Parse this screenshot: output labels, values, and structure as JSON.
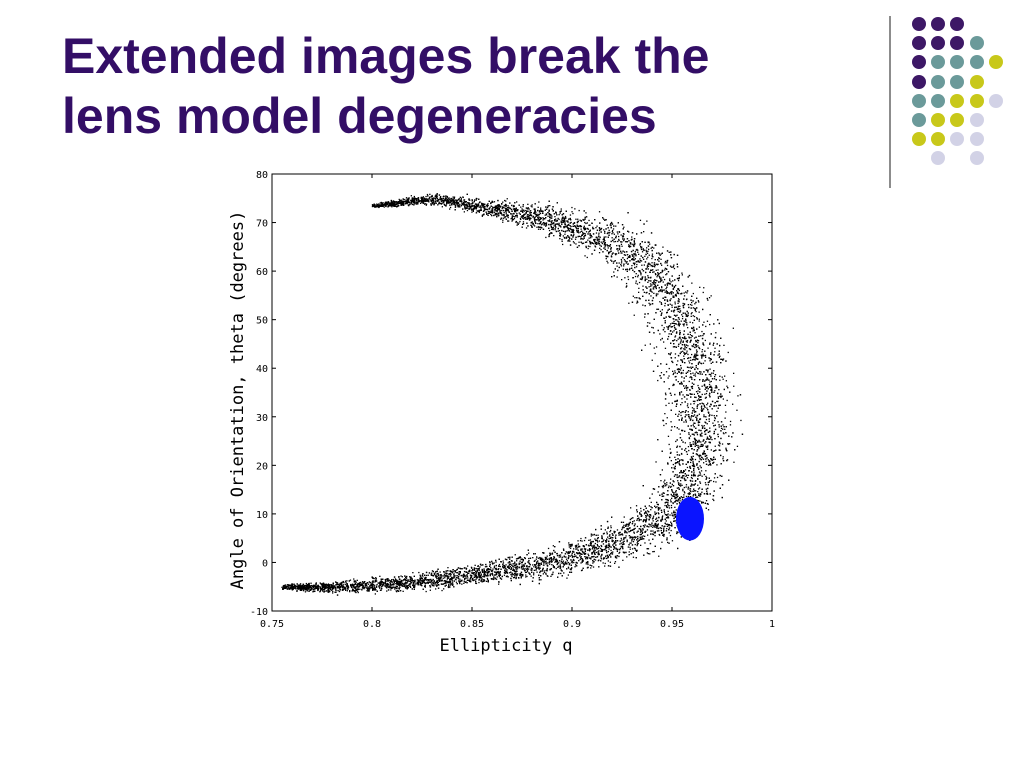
{
  "slide": {
    "title_line1": "Extended images break the",
    "title_line2": "lens model degeneracies",
    "title_color": "#330e66"
  },
  "decoration": {
    "dot_colors": {
      "purple": "#3d1866",
      "teal": "#6b9a9a",
      "olive": "#c8c81a",
      "lavender": "#d2d2e6"
    },
    "dot_grid": [
      [
        "purple",
        "purple",
        "purple",
        "",
        "",
        ""
      ],
      [
        "purple",
        "purple",
        "purple",
        "teal",
        "",
        ""
      ],
      [
        "purple",
        "teal",
        "teal",
        "teal",
        "olive",
        ""
      ],
      [
        "purple",
        "teal",
        "teal",
        "olive",
        "",
        ""
      ],
      [
        "teal",
        "teal",
        "olive",
        "olive",
        "lavender",
        ""
      ],
      [
        "teal",
        "olive",
        "olive",
        "lavender",
        "",
        ""
      ],
      [
        "olive",
        "olive",
        "lavender",
        "lavender",
        "",
        ""
      ],
      [
        "",
        "lavender",
        "",
        "lavender",
        "",
        ""
      ]
    ]
  },
  "chart_data": {
    "type": "scatter",
    "title": "",
    "xlabel": "Ellipticity q",
    "ylabel": "Angle of Orientation, theta (degrees)",
    "xlim": [
      0.75,
      1
    ],
    "ylim": [
      -10,
      80
    ],
    "xticks": [
      0.75,
      0.8,
      0.85,
      0.9,
      0.95,
      1
    ],
    "xtick_labels": [
      "0.75",
      "0.8",
      "0.85",
      "0.9",
      "0.95",
      "1"
    ],
    "yticks": [
      -10,
      0,
      10,
      20,
      30,
      40,
      50,
      60,
      70,
      80
    ],
    "ytick_labels": [
      "-10",
      "0",
      "10",
      "20",
      "30",
      "40",
      "50",
      "60",
      "70",
      "80"
    ],
    "grid": false,
    "point_color": "#000000",
    "series": [
      {
        "description_free": true,
        "marker": "dot",
        "distribution": "crescent",
        "spine": [
          {
            "q": 0.755,
            "theta": -5,
            "width": 0.5
          },
          {
            "q": 0.78,
            "theta": -5,
            "width": 1.2
          },
          {
            "q": 0.82,
            "theta": -4,
            "width": 1.8
          },
          {
            "q": 0.86,
            "theta": -2,
            "width": 2.5
          },
          {
            "q": 0.9,
            "theta": 1,
            "width": 3.5
          },
          {
            "q": 0.93,
            "theta": 5,
            "width": 4.5
          },
          {
            "q": 0.955,
            "theta": 12,
            "width": 6
          },
          {
            "q": 0.963,
            "theta": 20,
            "width": 7
          },
          {
            "q": 0.964,
            "theta": 30,
            "width": 7.5
          },
          {
            "q": 0.962,
            "theta": 40,
            "width": 7.5
          },
          {
            "q": 0.955,
            "theta": 50,
            "width": 7
          },
          {
            "q": 0.945,
            "theta": 58,
            "width": 6.5
          },
          {
            "q": 0.93,
            "theta": 64,
            "width": 5.5
          },
          {
            "q": 0.91,
            "theta": 68,
            "width": 4.5
          },
          {
            "q": 0.885,
            "theta": 71,
            "width": 3
          },
          {
            "q": 0.86,
            "theta": 73,
            "width": 1.8
          },
          {
            "q": 0.83,
            "theta": 75,
            "width": 1.2
          },
          {
            "q": 0.8,
            "theta": 73.5,
            "width": 0.4
          }
        ],
        "point_count": 9000
      }
    ],
    "highlight": {
      "q": 0.959,
      "theta": 9,
      "rx_q": 0.007,
      "ry_theta": 4.5,
      "color": "#0a14ff"
    }
  }
}
